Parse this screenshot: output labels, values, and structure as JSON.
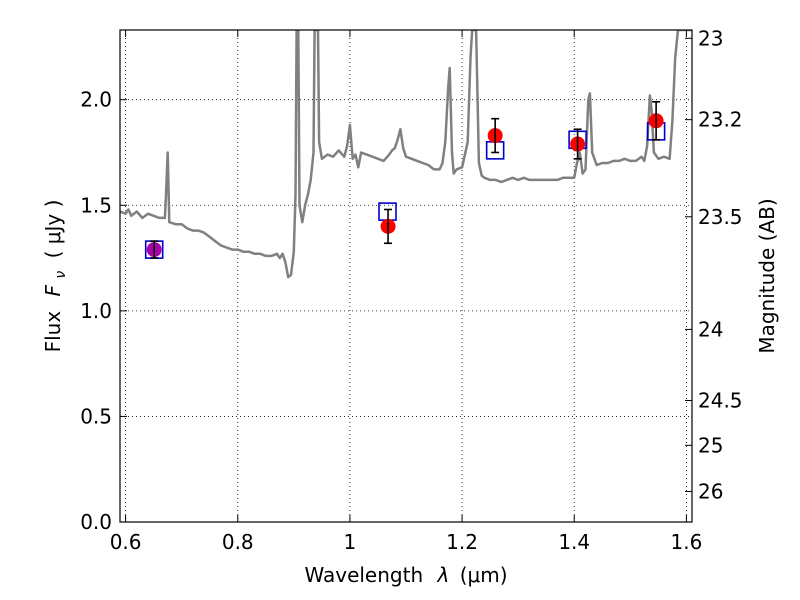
{
  "chart_data": {
    "type": "scatter",
    "xlabel_prefix": "Wavelength",
    "xlabel_symbol": "λ",
    "xlabel_unit": "(μm)",
    "ylabel_prefix": "Flux",
    "ylabel_symbol": "F",
    "ylabel_sub": "ν",
    "ylabel_unit": "( μJy )",
    "y2label": "Magnitude (AB)",
    "xlim": [
      0.59,
      1.61
    ],
    "ylim": [
      0.0,
      2.33
    ],
    "grid": true,
    "x_ticks": [
      {
        "value": 0.6,
        "label": "0.6"
      },
      {
        "value": 0.8,
        "label": "0.8"
      },
      {
        "value": 1.0,
        "label": "1"
      },
      {
        "value": 1.2,
        "label": "1.2"
      },
      {
        "value": 1.4,
        "label": "1.4"
      },
      {
        "value": 1.6,
        "label": "1.6"
      }
    ],
    "y_ticks": [
      {
        "value": 0.0,
        "label": "0.0"
      },
      {
        "value": 0.5,
        "label": "0.5"
      },
      {
        "value": 1.0,
        "label": "1.0"
      },
      {
        "value": 1.5,
        "label": "1.5"
      },
      {
        "value": 2.0,
        "label": "2.0"
      }
    ],
    "mag_ticks": [
      {
        "mag": 23.0,
        "label": "23"
      },
      {
        "mag": 23.2,
        "label": "23.2"
      },
      {
        "mag": 23.5,
        "label": "23.5"
      },
      {
        "mag": 24.0,
        "label": "24"
      },
      {
        "mag": 24.5,
        "label": "24.5"
      },
      {
        "mag": 25.0,
        "label": "25"
      },
      {
        "mag": 26.0,
        "label": "26"
      }
    ],
    "model_spectrum": {
      "color": "#808080",
      "points": [
        [
          0.59,
          1.47
        ],
        [
          0.6,
          1.46
        ],
        [
          0.605,
          1.48
        ],
        [
          0.61,
          1.45
        ],
        [
          0.62,
          1.47
        ],
        [
          0.63,
          1.44
        ],
        [
          0.64,
          1.46
        ],
        [
          0.65,
          1.45
        ],
        [
          0.66,
          1.44
        ],
        [
          0.67,
          1.44
        ],
        [
          0.672,
          1.55
        ],
        [
          0.675,
          1.75
        ],
        [
          0.678,
          1.42
        ],
        [
          0.69,
          1.41
        ],
        [
          0.7,
          1.41
        ],
        [
          0.71,
          1.39
        ],
        [
          0.72,
          1.38
        ],
        [
          0.73,
          1.38
        ],
        [
          0.74,
          1.37
        ],
        [
          0.75,
          1.35
        ],
        [
          0.76,
          1.33
        ],
        [
          0.77,
          1.31
        ],
        [
          0.78,
          1.3
        ],
        [
          0.79,
          1.29
        ],
        [
          0.8,
          1.29
        ],
        [
          0.81,
          1.28
        ],
        [
          0.82,
          1.28
        ],
        [
          0.83,
          1.27
        ],
        [
          0.84,
          1.27
        ],
        [
          0.85,
          1.26
        ],
        [
          0.86,
          1.26
        ],
        [
          0.87,
          1.27
        ],
        [
          0.875,
          1.25
        ],
        [
          0.88,
          1.27
        ],
        [
          0.885,
          1.23
        ],
        [
          0.89,
          1.16
        ],
        [
          0.895,
          1.17
        ],
        [
          0.9,
          1.28
        ],
        [
          0.903,
          1.55
        ],
        [
          0.905,
          2.33
        ],
        [
          0.908,
          2.33
        ],
        [
          0.91,
          1.5
        ],
        [
          0.915,
          1.42
        ],
        [
          0.92,
          1.5
        ],
        [
          0.925,
          1.55
        ],
        [
          0.93,
          1.62
        ],
        [
          0.935,
          1.75
        ],
        [
          0.937,
          2.33
        ],
        [
          0.943,
          2.33
        ],
        [
          0.945,
          1.8
        ],
        [
          0.95,
          1.72
        ],
        [
          0.96,
          1.74
        ],
        [
          0.97,
          1.73
        ],
        [
          0.98,
          1.76
        ],
        [
          0.99,
          1.73
        ],
        [
          0.995,
          1.78
        ],
        [
          1.0,
          1.88
        ],
        [
          1.005,
          1.72
        ],
        [
          1.01,
          1.74
        ],
        [
          1.015,
          1.68
        ],
        [
          1.02,
          1.75
        ],
        [
          1.03,
          1.74
        ],
        [
          1.04,
          1.73
        ],
        [
          1.05,
          1.72
        ],
        [
          1.06,
          1.71
        ],
        [
          1.07,
          1.74
        ],
        [
          1.075,
          1.76
        ],
        [
          1.08,
          1.77
        ],
        [
          1.085,
          1.81
        ],
        [
          1.09,
          1.86
        ],
        [
          1.095,
          1.77
        ],
        [
          1.1,
          1.73
        ],
        [
          1.11,
          1.72
        ],
        [
          1.12,
          1.71
        ],
        [
          1.13,
          1.7
        ],
        [
          1.14,
          1.69
        ],
        [
          1.15,
          1.67
        ],
        [
          1.16,
          1.67
        ],
        [
          1.165,
          1.7
        ],
        [
          1.17,
          1.8
        ],
        [
          1.175,
          2.05
        ],
        [
          1.178,
          2.15
        ],
        [
          1.182,
          1.75
        ],
        [
          1.185,
          1.65
        ],
        [
          1.19,
          1.67
        ],
        [
          1.2,
          1.68
        ],
        [
          1.21,
          1.8
        ],
        [
          1.215,
          2.2
        ],
        [
          1.218,
          2.33
        ],
        [
          1.225,
          2.33
        ],
        [
          1.23,
          1.7
        ],
        [
          1.235,
          1.64
        ],
        [
          1.24,
          1.63
        ],
        [
          1.25,
          1.62
        ],
        [
          1.26,
          1.62
        ],
        [
          1.27,
          1.61
        ],
        [
          1.28,
          1.62
        ],
        [
          1.29,
          1.63
        ],
        [
          1.3,
          1.62
        ],
        [
          1.31,
          1.63
        ],
        [
          1.32,
          1.62
        ],
        [
          1.33,
          1.62
        ],
        [
          1.34,
          1.62
        ],
        [
          1.35,
          1.62
        ],
        [
          1.36,
          1.62
        ],
        [
          1.37,
          1.62
        ],
        [
          1.38,
          1.63
        ],
        [
          1.39,
          1.63
        ],
        [
          1.4,
          1.63
        ],
        [
          1.405,
          1.7
        ],
        [
          1.41,
          1.75
        ],
        [
          1.415,
          1.65
        ],
        [
          1.42,
          1.67
        ],
        [
          1.425,
          2.0
        ],
        [
          1.428,
          2.03
        ],
        [
          1.432,
          1.75
        ],
        [
          1.44,
          1.69
        ],
        [
          1.45,
          1.7
        ],
        [
          1.46,
          1.7
        ],
        [
          1.47,
          1.71
        ],
        [
          1.48,
          1.71
        ],
        [
          1.49,
          1.72
        ],
        [
          1.5,
          1.71
        ],
        [
          1.51,
          1.71
        ],
        [
          1.52,
          1.73
        ],
        [
          1.525,
          1.71
        ],
        [
          1.53,
          1.78
        ],
        [
          1.535,
          2.02
        ],
        [
          1.538,
          1.95
        ],
        [
          1.542,
          1.75
        ],
        [
          1.55,
          1.72
        ],
        [
          1.56,
          1.73
        ],
        [
          1.57,
          1.72
        ],
        [
          1.575,
          1.9
        ],
        [
          1.58,
          2.2
        ],
        [
          1.585,
          2.33
        ],
        [
          1.61,
          2.33
        ]
      ]
    },
    "series": [
      {
        "marker": "square",
        "color": "#0000cc",
        "points": [
          {
            "x": 0.651,
            "y": 1.29
          },
          {
            "x": 1.067,
            "y": 1.47
          },
          {
            "x": 1.259,
            "y": 1.76
          },
          {
            "x": 1.406,
            "y": 1.81
          },
          {
            "x": 1.546,
            "y": 1.85
          }
        ]
      },
      {
        "marker": "circle",
        "color": "#ff0000",
        "points": [
          {
            "x": 0.651,
            "y": 1.29,
            "err": 0.04
          },
          {
            "x": 1.068,
            "y": 1.4,
            "err": 0.08
          },
          {
            "x": 1.259,
            "y": 1.83,
            "err": 0.08
          },
          {
            "x": 1.406,
            "y": 1.79,
            "err": 0.07
          },
          {
            "x": 1.546,
            "y": 1.9,
            "err": 0.09
          }
        ]
      }
    ],
    "overlap_color": "#aa00aa",
    "errorbar_color": "#000000"
  }
}
